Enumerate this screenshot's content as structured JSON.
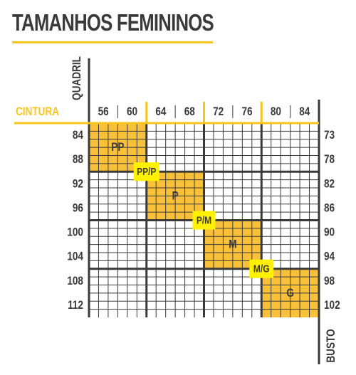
{
  "title": "TAMANHOS FEMININOS",
  "axis_labels": {
    "hip": "QUADRIL",
    "waist": "CINTURA",
    "bust": "BUSTO"
  },
  "waist_values": [
    "56",
    "60",
    "64",
    "68",
    "72",
    "76",
    "80",
    "84"
  ],
  "hip_values": [
    "84",
    "88",
    "92",
    "96",
    "100",
    "104",
    "108",
    "112"
  ],
  "bust_values": [
    "73",
    "78",
    "82",
    "86",
    "90",
    "94",
    "98",
    "102"
  ],
  "sizes": [
    "PP",
    "P",
    "M",
    "G"
  ],
  "transition_sizes": [
    "PP/P",
    "P/M",
    "M/G"
  ],
  "colors": {
    "accent": "#F7C51E",
    "size_fill": "#F9C13A",
    "transition_fill": "#FFF100",
    "text": "#3A3A3A",
    "grid": "#3A3A3A"
  }
}
